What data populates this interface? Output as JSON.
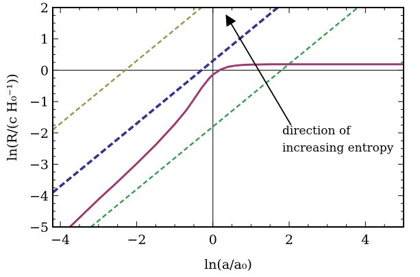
{
  "chart_data": {
    "type": "line",
    "xlim": [
      -4.2,
      5.0
    ],
    "ylim": [
      -5.0,
      2.0
    ],
    "x_ticks": [
      -4,
      -2,
      0,
      2,
      4
    ],
    "x_tick_labels": [
      "−4",
      "−2",
      "0",
      "2",
      "4"
    ],
    "y_ticks": [
      -5,
      -4,
      -3,
      -2,
      -1,
      0,
      1,
      2
    ],
    "y_tick_labels": [
      "−5",
      "−4",
      "−3",
      "−2",
      "−1",
      "0",
      "1",
      "2"
    ],
    "xlabel": "ln(a/a₀)",
    "ylabel": "ln(R/(c H₀⁻¹))",
    "grid": false,
    "zero_axes": true,
    "series": [
      {
        "color": "#a0904a",
        "style": "dashed",
        "x": [
          -4.2,
          3.3
        ],
        "y": [
          -1.9,
          5.6
        ]
      },
      {
        "color": "#35358f",
        "style": "dashed-thick",
        "x": [
          -4.2,
          3.3
        ],
        "y": [
          -3.9,
          3.6
        ]
      },
      {
        "color": "#3c9a50",
        "style": "dashed",
        "x": [
          -3.2,
          5.0
        ],
        "y": [
          -5.0,
          3.2
        ]
      },
      {
        "color": "#9c3a72",
        "style": "solid",
        "x": [
          -3.75,
          -3.0,
          -2.5,
          -2.0,
          -1.5,
          -1.0,
          -0.7,
          -0.5,
          -0.3,
          -0.1,
          0.0,
          0.2,
          0.4,
          0.6,
          0.8,
          1.0,
          1.5,
          2.0,
          3.0,
          4.0,
          5.0
        ],
        "y": [
          -5.0,
          -4.12,
          -3.56,
          -2.98,
          -2.38,
          -1.72,
          -1.28,
          -0.93,
          -0.57,
          -0.26,
          -0.14,
          0.02,
          0.11,
          0.15,
          0.17,
          0.18,
          0.19,
          0.19,
          0.19,
          0.19,
          0.19
        ]
      }
    ],
    "annotation": {
      "lines": [
        "direction of",
        "increasing entropy"
      ],
      "arrow_from": [
        2.05,
        -1.75
      ],
      "arrow_to": [
        0.35,
        1.75
      ]
    }
  }
}
